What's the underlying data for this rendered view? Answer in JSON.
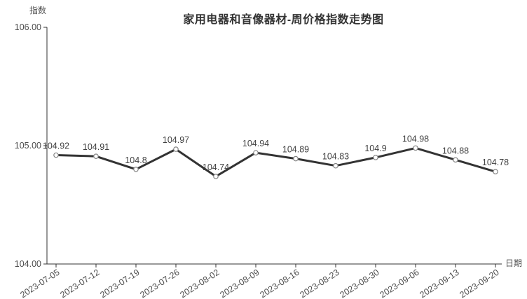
{
  "chart": {
    "title": "家用电器和音像器材-周价格指数走势图",
    "y_axis_name": "指数",
    "x_axis_name": "日期"
  },
  "chart_data": {
    "type": "line",
    "title": "家用电器和音像器材-周价格指数走势图",
    "categories": [
      "2023-07-05",
      "2023-07-12",
      "2023-07-19",
      "2023-07-26",
      "2023-08-02",
      "2023-08-09",
      "2023-08-16",
      "2023-08-23",
      "2023-08-30",
      "2023-09-06",
      "2023-09-13",
      "2023-09-20"
    ],
    "values": [
      104.92,
      104.91,
      104.8,
      104.97,
      104.74,
      104.94,
      104.89,
      104.83,
      104.9,
      104.98,
      104.88,
      104.78
    ],
    "value_labels": [
      "104.92",
      "104.91",
      "104.8",
      "104.97",
      "104.74",
      "104.94",
      "104.89",
      "104.83",
      "104.9",
      "104.98",
      "104.88",
      "104.78"
    ],
    "xlabel": "日期",
    "ylabel": "指数",
    "ylim": [
      104,
      106
    ],
    "yticks": [
      {
        "value": 104,
        "label": "104.00"
      },
      {
        "value": 105,
        "label": "105.00"
      },
      {
        "value": 106,
        "label": "106.00"
      }
    ],
    "grid": false,
    "legend": false,
    "x_label_rotation_deg": -33,
    "colors": {
      "line": "#333333",
      "marker_fill": "#ffffff",
      "marker_stroke": "#848484",
      "axis": "#333333",
      "tick_text": "#4d4d4d",
      "data_label_text": "#404040",
      "title_text": "#333333",
      "background": "#ffffff"
    }
  }
}
